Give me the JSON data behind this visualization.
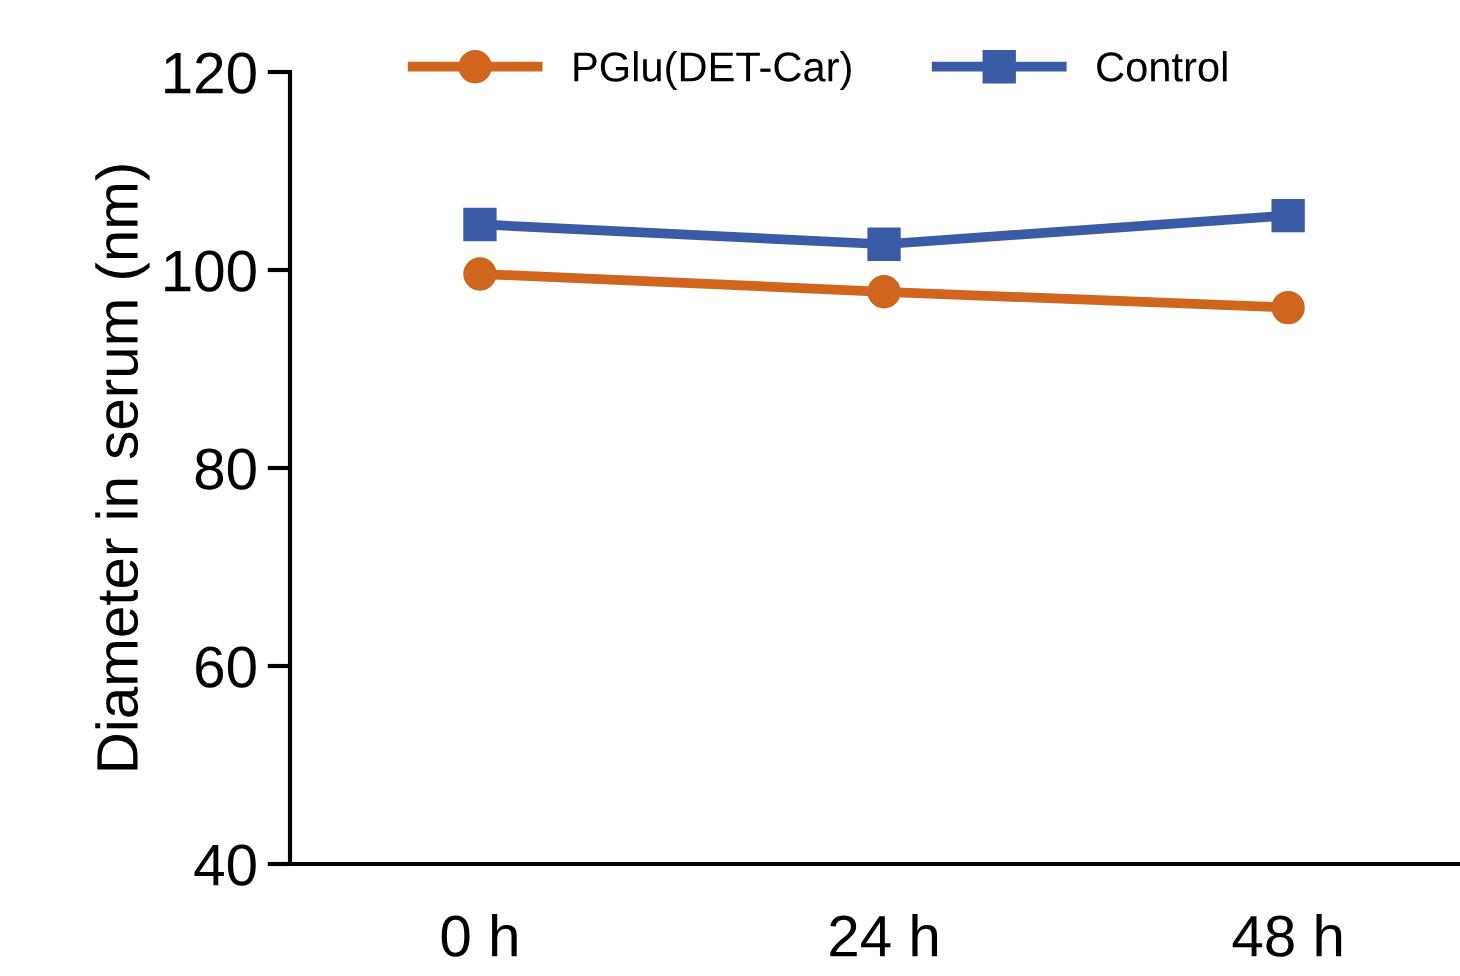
{
  "chart_data": {
    "type": "line",
    "ylabel": "Diameter in serum (nm)",
    "categories": [
      "0 h",
      "24 h",
      "48 h"
    ],
    "series": [
      {
        "name": "PGlu(DET-Car)",
        "color": "#d0661e",
        "marker": "circle",
        "values": [
          99.6,
          97.8,
          96.2
        ]
      },
      {
        "name": "Control",
        "color": "#3a5ca6",
        "marker": "square",
        "values": [
          104.6,
          102.6,
          105.5
        ]
      }
    ],
    "ylim": [
      40,
      120
    ],
    "yticks": [
      40,
      60,
      80,
      100,
      120
    ],
    "grid": false,
    "legend": "top"
  }
}
